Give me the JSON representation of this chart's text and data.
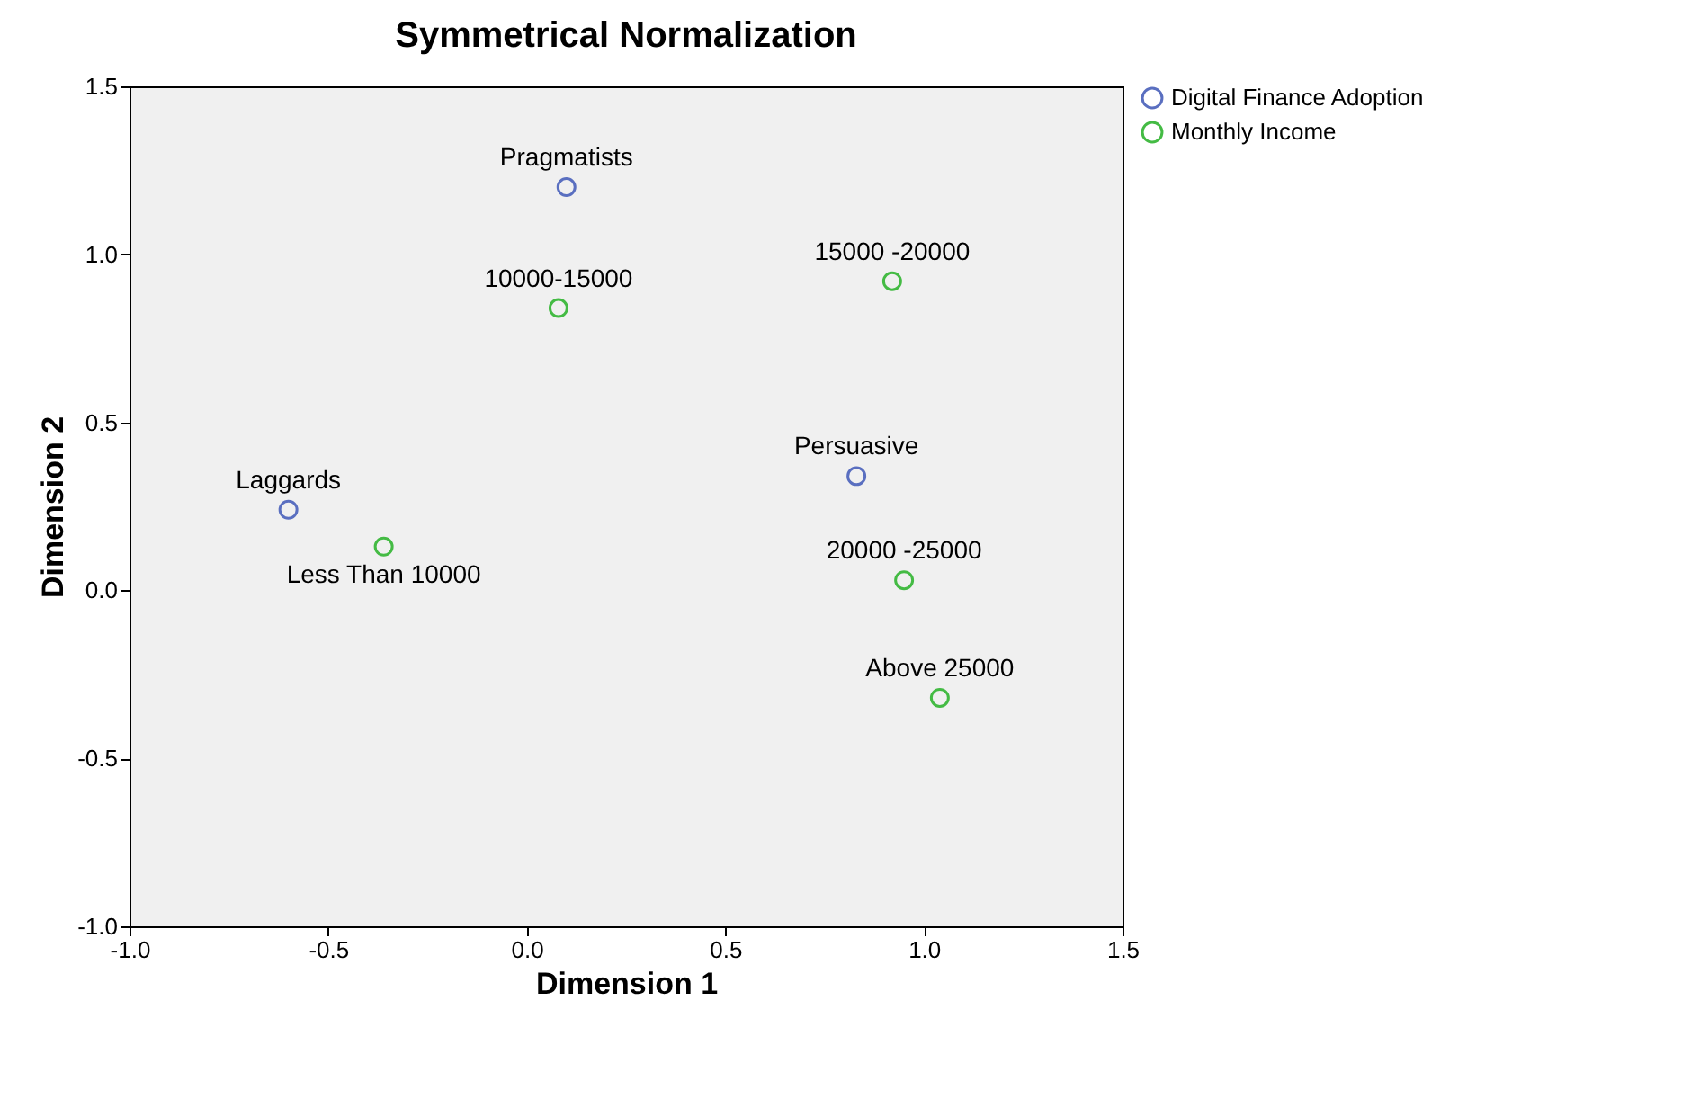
{
  "chart_data": {
    "type": "scatter",
    "title": "Symmetrical Normalization",
    "xlabel": "Dimension 1",
    "ylabel": "Dimension 2",
    "xlim": [
      -1.0,
      1.5
    ],
    "xticks": [
      {
        "value": -1,
        "label": "-1.0"
      },
      {
        "value": -0.5,
        "label": "-0.5"
      },
      {
        "value": 0,
        "label": "0.0"
      },
      {
        "value": 0.5,
        "label": "0.5"
      },
      {
        "value": 1,
        "label": "1.0"
      },
      {
        "value": 1.5,
        "label": "1.5"
      }
    ],
    "ylim": [
      -1.0,
      1.5
    ],
    "yticks": [
      {
        "value": -1,
        "label": "-1.0"
      },
      {
        "value": -0.5,
        "label": "-0.5"
      },
      {
        "value": 0,
        "label": "0.0"
      },
      {
        "value": 0.5,
        "label": "0.5"
      },
      {
        "value": 1,
        "label": "1.0"
      },
      {
        "value": 1.5,
        "label": "1.5"
      }
    ],
    "grid": false,
    "legend": "top right",
    "marker": "circle",
    "series": [
      {
        "name": "Digital Finance Adoption",
        "color": "#5a6fc0",
        "x": [
          0.1,
          0.83,
          -0.6
        ],
        "values": [
          1.2,
          0.34,
          0.24
        ]
      },
      {
        "name": "Monthly Income",
        "color": "#44bb44",
        "x": [
          0.08,
          0.92,
          -0.36,
          0.95,
          1.04
        ],
        "values": [
          0.84,
          0.92,
          0.13,
          0.03,
          -0.32
        ]
      }
    ],
    "annotations": [
      {
        "text": "Pragmatists",
        "x": 0.1,
        "y": 1.2
      },
      {
        "text": "Persuasive",
        "x": 0.83,
        "y": 0.34
      },
      {
        "text": "Laggards",
        "x": -0.6,
        "y": 0.24
      },
      {
        "text": "10000-15000",
        "x": 0.08,
        "y": 0.84
      },
      {
        "text": "15000 -20000",
        "x": 0.92,
        "y": 0.92
      },
      {
        "text": "Less Than 10000",
        "x": -0.36,
        "y": 0.13
      },
      {
        "text": "20000 -25000",
        "x": 0.95,
        "y": 0.03
      },
      {
        "text": "Above 25000",
        "x": 1.04,
        "y": -0.32
      }
    ]
  }
}
